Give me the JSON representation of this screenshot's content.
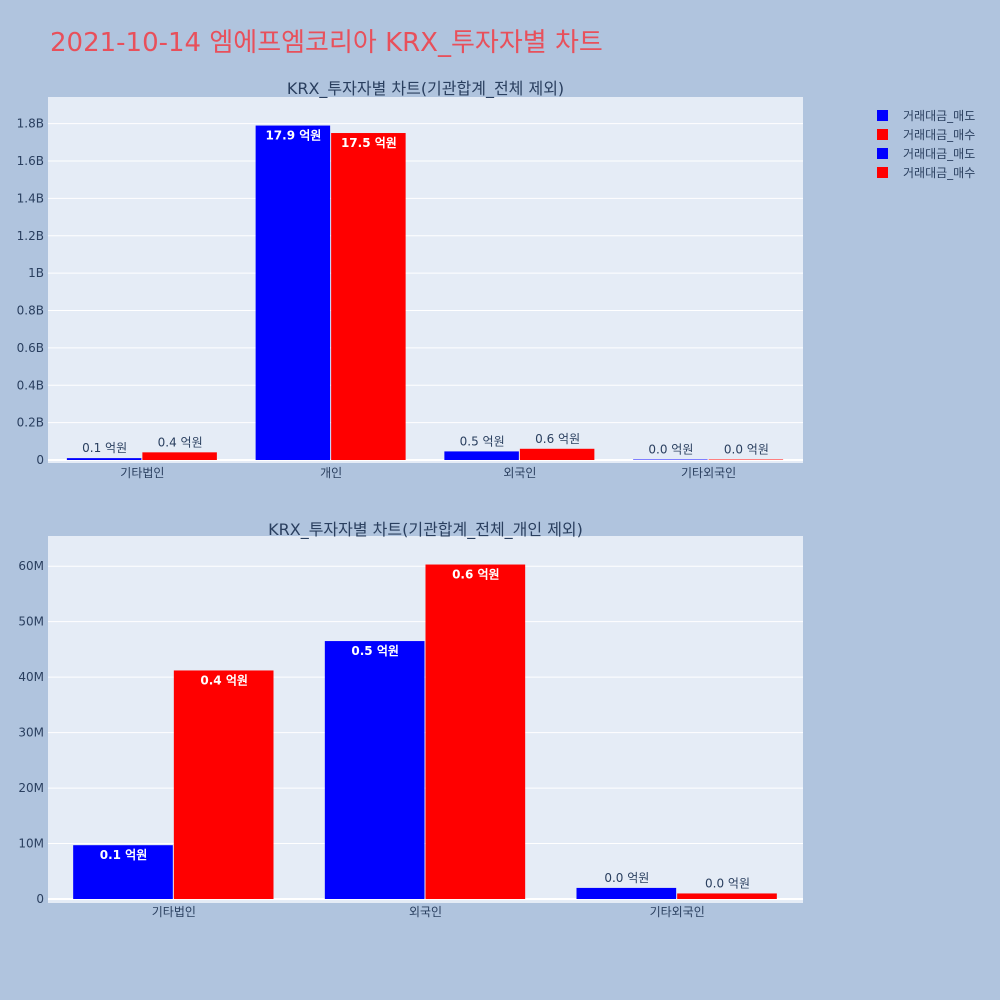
{
  "title": "2021-10-14 엠에프엠코리아 KRX_투자자별 차트",
  "colors": {
    "sell": "#0000ff",
    "buy": "#ff0000",
    "plot_bg": "#e5ecf6",
    "page_bg": "#b0c4de",
    "title": "#e8505b"
  },
  "legend": [
    {
      "label": "거래대금_매도",
      "color": "#0000ff"
    },
    {
      "label": "거래대금_매수",
      "color": "#ff0000"
    },
    {
      "label": "거래대금_매도",
      "color": "#0000ff"
    },
    {
      "label": "거래대금_매수",
      "color": "#ff0000"
    }
  ],
  "chart_data": [
    {
      "type": "bar",
      "title": "KRX_투자자별 차트(기관합계_전체 제외)",
      "categories": [
        "기타법인",
        "개인",
        "외국인",
        "기타외국인"
      ],
      "series": [
        {
          "name": "거래대금_매도",
          "values": [
            10000000,
            1790000000,
            46000000,
            2000000
          ],
          "labels": [
            "0.1 억원",
            "17.9 억원",
            "0.5 억원",
            "0.0 억원"
          ]
        },
        {
          "name": "거래대금_매수",
          "values": [
            41000000,
            1750000000,
            60000000,
            1000000
          ],
          "labels": [
            "0.4 억원",
            "17.5 억원",
            "0.6 억원",
            "0.0 억원"
          ]
        }
      ],
      "ylim": [
        0,
        1900000000.0
      ],
      "yticks": [
        0,
        200000000.0,
        400000000.0,
        600000000.0,
        800000000.0,
        1000000000.0,
        1200000000.0,
        1400000000.0,
        1600000000.0,
        1800000000.0
      ],
      "ytick_labels": [
        "0",
        "0.2B",
        "0.4B",
        "0.6B",
        "0.8B",
        "1B",
        "1.2B",
        "1.4B",
        "1.6B",
        "1.8B"
      ],
      "grid": true
    },
    {
      "type": "bar",
      "title": "KRX_투자자별 차트(기관합계_전체_개인 제외)",
      "categories": [
        "기타법인",
        "외국인",
        "기타외국인"
      ],
      "series": [
        {
          "name": "거래대금_매도",
          "values": [
            9700000,
            46500000,
            2000000
          ],
          "labels": [
            "0.1 억원",
            "0.5 억원",
            "0.0 억원"
          ]
        },
        {
          "name": "거래대금_매수",
          "values": [
            41200000,
            60300000,
            1000000
          ],
          "labels": [
            "0.4 억원",
            "0.6 억원",
            "0.0 억원"
          ]
        }
      ],
      "ylim": [
        0,
        64000000
      ],
      "yticks": [
        0,
        10000000,
        20000000,
        30000000,
        40000000,
        50000000,
        60000000
      ],
      "ytick_labels": [
        "0",
        "10M",
        "20M",
        "30M",
        "40M",
        "50M",
        "60M"
      ],
      "grid": true
    }
  ]
}
